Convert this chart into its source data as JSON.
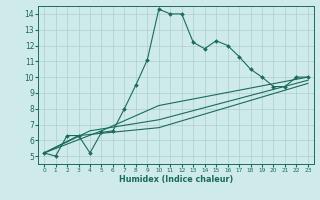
{
  "xlabel": "Humidex (Indice chaleur)",
  "bg_color": "#ceeaea",
  "line_color": "#1a6b5a",
  "grid_color": "#aed0d0",
  "xlim": [
    -0.5,
    23.5
  ],
  "ylim": [
    4.5,
    14.5
  ],
  "xticks": [
    0,
    1,
    2,
    3,
    4,
    5,
    6,
    7,
    8,
    9,
    10,
    11,
    12,
    13,
    14,
    15,
    16,
    17,
    18,
    19,
    20,
    21,
    22,
    23
  ],
  "yticks": [
    5,
    6,
    7,
    8,
    9,
    10,
    11,
    12,
    13,
    14
  ],
  "main_x": [
    0,
    1,
    2,
    3,
    4,
    5,
    6,
    7,
    8,
    9,
    10,
    11,
    12,
    13,
    14,
    15,
    16,
    17,
    18,
    19,
    20,
    21,
    22,
    23
  ],
  "main_y": [
    5.2,
    5.0,
    6.3,
    6.3,
    5.2,
    6.5,
    6.6,
    8.0,
    9.5,
    11.1,
    14.3,
    14.0,
    14.0,
    12.2,
    11.8,
    12.3,
    12.0,
    11.3,
    10.5,
    10.0,
    9.4,
    9.4,
    10.0,
    10.0
  ],
  "line2_x": [
    0,
    3,
    10,
    23
  ],
  "line2_y": [
    5.2,
    6.3,
    6.8,
    9.6
  ],
  "line3_x": [
    0,
    4,
    10,
    23
  ],
  "line3_y": [
    5.2,
    6.6,
    7.3,
    9.8
  ],
  "line4_x": [
    0,
    5,
    10,
    23
  ],
  "line4_y": [
    5.2,
    6.6,
    8.2,
    10.0
  ]
}
